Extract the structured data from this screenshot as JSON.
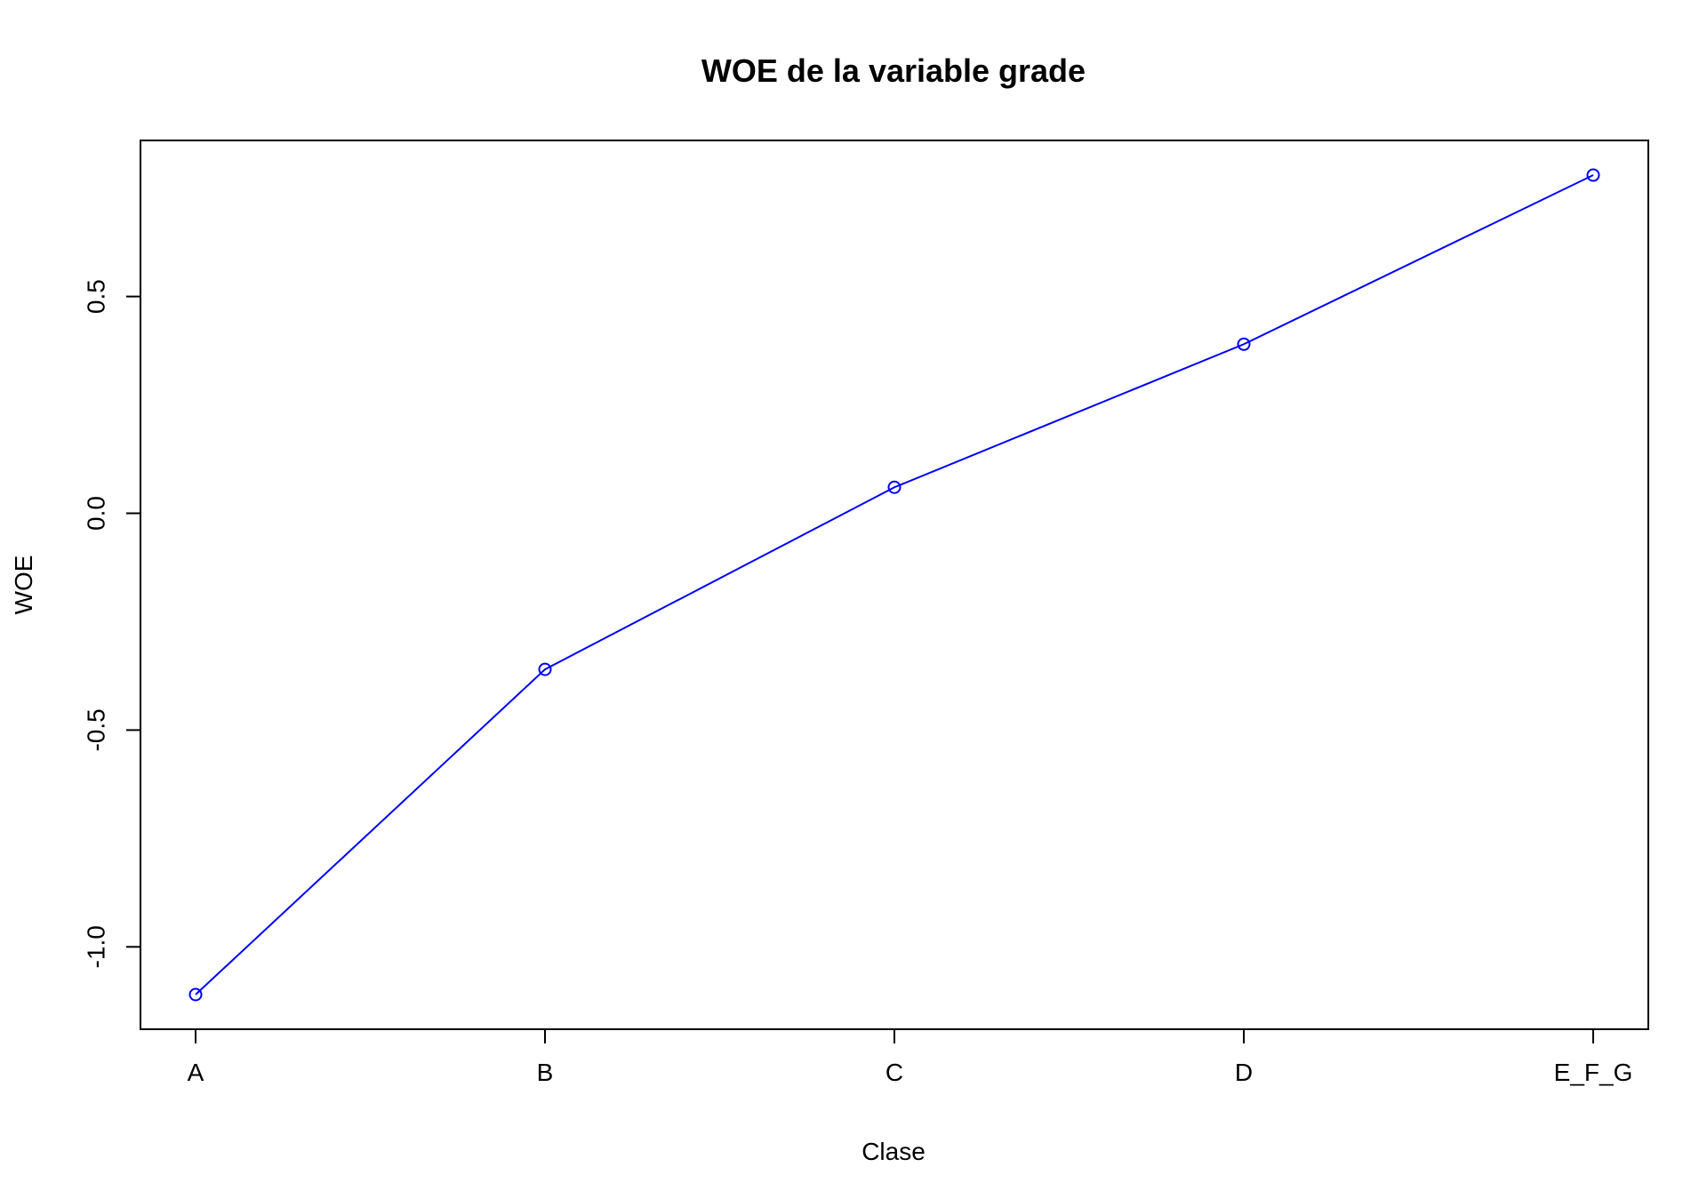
{
  "chart_data": {
    "type": "line",
    "title": "WOE de la variable grade",
    "xlabel": "Clase",
    "ylabel": "WOE",
    "categories": [
      "A",
      "B",
      "C",
      "D",
      "E_F_G"
    ],
    "series": [
      {
        "values": [
          -1.11,
          -0.36,
          0.06,
          0.39,
          0.78
        ]
      }
    ],
    "ylim": [
      -1.19,
      0.86
    ],
    "y_ticks": [
      -1.0,
      -0.5,
      0.0,
      0.5
    ],
    "y_tick_labels": [
      "-1.0",
      "-0.5",
      "0.0",
      "0.5"
    ],
    "grid": false,
    "line_color": "#0000ff",
    "marker": "open-circle"
  }
}
